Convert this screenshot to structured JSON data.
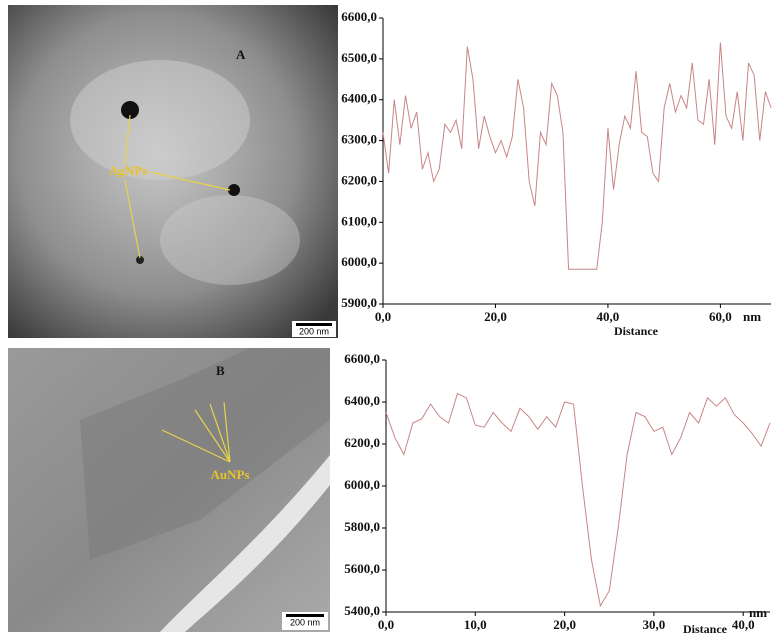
{
  "images": [
    {
      "panel_label": "A",
      "annotation": "AgNPs",
      "scale_bar": "200 nm"
    },
    {
      "panel_label": "B",
      "annotation": "AuNPs",
      "scale_bar": "200 nm"
    }
  ],
  "chart_data": [
    {
      "type": "line",
      "x_label": "Distance",
      "x_unit": "nm",
      "color": "#c98585",
      "x": [
        0,
        1,
        2,
        3,
        4,
        5,
        6,
        7,
        8,
        9,
        10,
        11,
        12,
        13,
        14,
        15,
        16,
        17,
        18,
        19,
        20,
        21,
        22,
        23,
        24,
        25,
        26,
        27,
        28,
        29,
        30,
        31,
        32,
        33,
        34,
        35,
        36,
        37,
        38,
        39,
        40,
        41,
        42,
        43,
        44,
        45,
        46,
        47,
        48,
        49,
        50,
        51,
        52,
        53,
        54,
        55,
        56,
        57,
        58,
        59,
        60,
        61,
        62,
        63,
        64,
        65,
        66,
        67,
        68,
        69
      ],
      "values": [
        6320,
        6220,
        6400,
        6290,
        6410,
        6330,
        6370,
        6230,
        6270,
        6200,
        6230,
        6340,
        6320,
        6350,
        6280,
        6530,
        6450,
        6280,
        6360,
        6310,
        6270,
        6300,
        6260,
        6310,
        6450,
        6380,
        6200,
        6140,
        6320,
        6290,
        6440,
        6410,
        6320,
        5985,
        5985,
        5985,
        5985,
        5985,
        5985,
        6100,
        6330,
        6180,
        6290,
        6360,
        6330,
        6470,
        6320,
        6310,
        6220,
        6200,
        6380,
        6440,
        6370,
        6410,
        6380,
        6490,
        6350,
        6340,
        6450,
        6290,
        6540,
        6360,
        6330,
        6420,
        6300,
        6490,
        6460,
        6300,
        6420,
        6380
      ],
      "xlim": [
        0,
        69
      ],
      "ylim": [
        5900,
        6600
      ],
      "xticks": [
        {
          "value": 0,
          "label": "0,0"
        },
        {
          "value": 20,
          "label": "20,0"
        },
        {
          "value": 40,
          "label": "40,0"
        },
        {
          "value": 60,
          "label": "60,0"
        }
      ],
      "yticks": [
        {
          "value": 5900,
          "label": "5900,0"
        },
        {
          "value": 6000,
          "label": "6000,0"
        },
        {
          "value": 6100,
          "label": "6100,0"
        },
        {
          "value": 6200,
          "label": "6200,0"
        },
        {
          "value": 6300,
          "label": "6300,0"
        },
        {
          "value": 6400,
          "label": "6400,0"
        },
        {
          "value": 6500,
          "label": "6500,0"
        },
        {
          "value": 6600,
          "label": "6600,0"
        }
      ]
    },
    {
      "type": "line",
      "x_label": "Distance",
      "x_unit": "nm",
      "color": "#c98585",
      "x": [
        0,
        1,
        2,
        3,
        4,
        5,
        6,
        7,
        8,
        9,
        10,
        11,
        12,
        13,
        14,
        15,
        16,
        17,
        18,
        19,
        20,
        21,
        22,
        23,
        24,
        25,
        26,
        27,
        28,
        29,
        30,
        31,
        32,
        33,
        34,
        35,
        36,
        37,
        38,
        39,
        40,
        41,
        42,
        43
      ],
      "values": [
        6350,
        6230,
        6150,
        6300,
        6320,
        6390,
        6330,
        6300,
        6440,
        6420,
        6290,
        6280,
        6350,
        6300,
        6260,
        6370,
        6330,
        6270,
        6330,
        6280,
        6400,
        6390,
        6000,
        5650,
        5430,
        5500,
        5800,
        6150,
        6350,
        6330,
        6260,
        6280,
        6150,
        6230,
        6350,
        6300,
        6420,
        6380,
        6420,
        6340,
        6300,
        6250,
        6190,
        6300
      ],
      "xlim": [
        0,
        43
      ],
      "ylim": [
        5400,
        6600
      ],
      "xticks": [
        {
          "value": 0,
          "label": "0,0"
        },
        {
          "value": 10,
          "label": "10,0"
        },
        {
          "value": 20,
          "label": "20,0"
        },
        {
          "value": 30,
          "label": "30,0"
        },
        {
          "value": 40,
          "label": "40,0"
        }
      ],
      "yticks": [
        {
          "value": 5400,
          "label": "5400,0"
        },
        {
          "value": 5600,
          "label": "5600,0"
        },
        {
          "value": 5800,
          "label": "5800,0"
        },
        {
          "value": 6000,
          "label": "6000,0"
        },
        {
          "value": 6200,
          "label": "6200,0"
        },
        {
          "value": 6400,
          "label": "6400,0"
        },
        {
          "value": 6600,
          "label": "6600,0"
        }
      ]
    }
  ]
}
